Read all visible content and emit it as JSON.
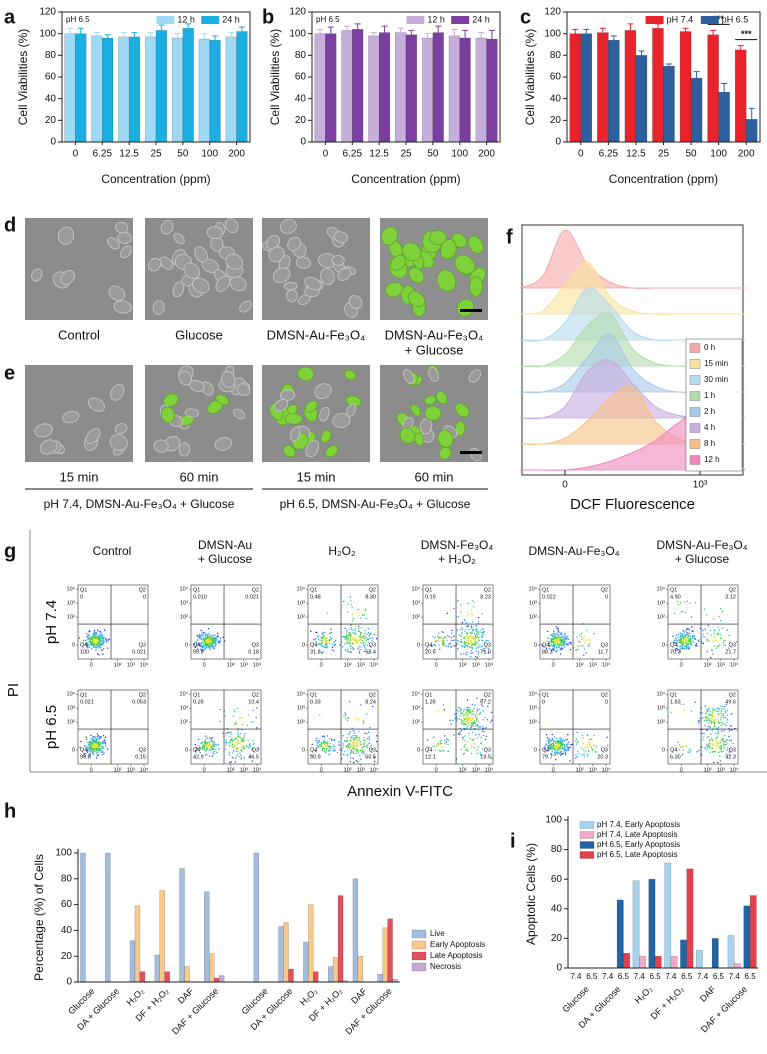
{
  "chart_data": [
    {
      "type": "bar",
      "panel": "a",
      "annotation": "pH 6.5",
      "xlabel": "Concentration (ppm)",
      "ylabel": "Cell Viabilities (%)",
      "categories": [
        "0",
        "6.25",
        "12.5",
        "25",
        "50",
        "100",
        "200"
      ],
      "series": [
        {
          "name": "12 h",
          "color": "#9fd9f3",
          "values": [
            100,
            98,
            97,
            97,
            96,
            95,
            97
          ],
          "errors": [
            5,
            3,
            4,
            4,
            4,
            5,
            4
          ]
        },
        {
          "name": "24 h",
          "color": "#1aafe0",
          "values": [
            100,
            96,
            97,
            103,
            105,
            94,
            102
          ],
          "errors": [
            5,
            3,
            4,
            5,
            4,
            4,
            4
          ]
        }
      ],
      "ylim": [
        0,
        120
      ],
      "yticks": [
        0,
        20,
        40,
        60,
        80,
        100,
        120
      ],
      "legend": "top-right"
    },
    {
      "type": "bar",
      "panel": "b",
      "annotation": "pH 6.5",
      "xlabel": "Concentration (ppm)",
      "ylabel": "Cell Viabilities (%)",
      "categories": [
        "0",
        "6.25",
        "12.5",
        "25",
        "50",
        "100",
        "200"
      ],
      "series": [
        {
          "name": "12 h",
          "color": "#c6aedb",
          "values": [
            100,
            103,
            98,
            101,
            96,
            98,
            96
          ],
          "errors": [
            4,
            4,
            3,
            4,
            4,
            6,
            5
          ]
        },
        {
          "name": "24 h",
          "color": "#7a3f9f",
          "values": [
            100,
            104,
            101,
            99,
            101,
            96,
            95
          ],
          "errors": [
            6,
            5,
            6,
            4,
            6,
            7,
            8
          ]
        }
      ],
      "ylim": [
        0,
        120
      ],
      "yticks": [
        0,
        20,
        40,
        60,
        80,
        100,
        120
      ],
      "legend": "top-right"
    },
    {
      "type": "bar",
      "panel": "c",
      "xlabel": "Concentration (ppm)",
      "ylabel": "Cell Viabilities (%)",
      "categories": [
        "0",
        "6.25",
        "12.5",
        "25",
        "50",
        "100",
        "200"
      ],
      "series": [
        {
          "name": "pH 7.4",
          "color": "#e8232b",
          "values": [
            100,
            101,
            103,
            105,
            102,
            99,
            85
          ],
          "errors": [
            4,
            4,
            6,
            4,
            3,
            4,
            4
          ]
        },
        {
          "name": "pH 6.5",
          "color": "#2e5f9f",
          "values": [
            100,
            94,
            80,
            70,
            59,
            46,
            21
          ],
          "errors": [
            4,
            4,
            4,
            2,
            6,
            8,
            10
          ]
        }
      ],
      "annotations": [
        "***",
        "***"
      ],
      "ylim": [
        0,
        120
      ],
      "yticks": [
        0,
        20,
        40,
        60,
        80,
        100,
        120
      ],
      "legend": "top-right"
    },
    {
      "type": "ridgeline",
      "panel": "f",
      "xlabel": "DCF Fluorescence",
      "x": [
        -1,
        -0.5,
        0,
        0.5,
        1,
        1.5,
        2,
        2.5,
        3,
        3.5,
        4
      ],
      "xlim": [
        -1,
        4
      ],
      "xticks": [
        {
          "value": 0,
          "label": "0"
        },
        {
          "value": 3,
          "label": "10³"
        }
      ],
      "series": [
        {
          "name": "0 h",
          "color": "#f3a9aa",
          "values": [
            0,
            0.2,
            1,
            0.4,
            0.1,
            0,
            0,
            0,
            0,
            0,
            0
          ]
        },
        {
          "name": "15 min",
          "color": "#f8e29a",
          "values": [
            0,
            0.05,
            0.5,
            0.9,
            0.3,
            0.05,
            0,
            0,
            0,
            0,
            0
          ]
        },
        {
          "name": "30 min",
          "color": "#b5dbef",
          "values": [
            0,
            0,
            0.3,
            0.9,
            0.6,
            0.15,
            0,
            0,
            0,
            0,
            0
          ]
        },
        {
          "name": "1 h",
          "color": "#b3dcab",
          "values": [
            0,
            0,
            0.2,
            0.7,
            0.9,
            0.3,
            0.05,
            0,
            0,
            0,
            0
          ]
        },
        {
          "name": "2 h",
          "color": "#a6c9e8",
          "values": [
            0,
            0,
            0.15,
            0.6,
            1,
            0.4,
            0.1,
            0,
            0,
            0,
            0
          ]
        },
        {
          "name": "4 h",
          "color": "#c8acdf",
          "values": [
            0,
            0,
            0.2,
            0.8,
            1,
            0.6,
            0.2,
            0.05,
            0,
            0,
            0
          ]
        },
        {
          "name": "8 h",
          "color": "#f7c085",
          "values": [
            0,
            0,
            0.1,
            0.4,
            0.8,
            1,
            0.4,
            0.1,
            0,
            0,
            0
          ]
        },
        {
          "name": "12 h",
          "color": "#ee86bd",
          "values": [
            0,
            0,
            0,
            0.05,
            0.15,
            0.3,
            0.5,
            0.8,
            1,
            0.4,
            0
          ]
        }
      ]
    },
    {
      "type": "bar",
      "panel": "h",
      "ylabel": "Percentage (%) of Cells",
      "categories": [
        "Glucose",
        "DA + Glucose",
        "H₂O₂",
        "DF + H₂O₂",
        "DAF",
        "DAF + Glucose",
        null,
        "Glucose",
        "DA + Glucose",
        "H₂O₂",
        "DF + H₂O₂",
        "DAF",
        "DAF + Glucose"
      ],
      "series": [
        {
          "name": "Live",
          "color": "#a3bde0",
          "values": [
            100,
            100,
            32,
            21,
            88,
            70,
            null,
            100,
            43,
            31,
            12,
            80,
            6
          ]
        },
        {
          "name": "Early Apoptosis",
          "color": "#f8c88d",
          "values": [
            0,
            0,
            59,
            71,
            12,
            22,
            null,
            0,
            46,
            60,
            19,
            20,
            42
          ]
        },
        {
          "name": "Late Apoptosis",
          "color": "#e2505b",
          "values": [
            0,
            0,
            8,
            8,
            0,
            3,
            null,
            0,
            10,
            8,
            67,
            0,
            49
          ]
        },
        {
          "name": "Necrosis",
          "color": "#c3a9d6",
          "values": [
            0,
            0,
            0.5,
            0.2,
            0,
            5,
            null,
            0,
            0.3,
            0.3,
            1,
            0,
            2
          ]
        }
      ],
      "ylim": [
        0,
        100
      ],
      "yticks": [
        0,
        20,
        40,
        60,
        80,
        100
      ],
      "legend": "right"
    },
    {
      "type": "bar",
      "panel": "i",
      "ylabel": "Apoptotic Cells (%)",
      "categories": [
        "Glucose",
        "DA + Glucose",
        "H₂O₂",
        "DF + H₂O₂",
        "DAF",
        "DAF + Glucose"
      ],
      "groups": [
        {
          "subcategory": "7.4",
          "series": [
            {
              "name": "pH 7.4, Early Apoptosis",
              "color": "#a8d3ee",
              "values": [
                0,
                0,
                59,
                71,
                12,
                22
              ]
            },
            {
              "name": "pH 7.4, Late Apoptosis",
              "color": "#f1a9c8",
              "values": [
                0,
                0,
                8,
                8,
                0,
                3
              ]
            }
          ]
        },
        {
          "subcategory": "6.5",
          "series": [
            {
              "name": "pH 6.5, Early Apoptosis",
              "color": "#1f64a3",
              "values": [
                0,
                46,
                60,
                19,
                20,
                42
              ]
            },
            {
              "name": "pH 6.5, Late Apoptosis",
              "color": "#e0404f",
              "values": [
                0,
                10,
                8,
                67,
                0,
                49
              ]
            }
          ]
        }
      ],
      "ylim": [
        0,
        100
      ],
      "yticks": [
        0,
        20,
        40,
        60,
        80,
        100
      ],
      "legend": "top-left"
    }
  ],
  "images": {
    "d": {
      "panel": "d",
      "captions": [
        [
          "Control"
        ],
        [
          "Glucose"
        ],
        [
          "DMSN-Au-Fe₃O₄"
        ],
        [
          "DMSN-Au-Fe₃O₄",
          "+ Glucose"
        ]
      ]
    },
    "e": {
      "panel": "e",
      "captions": [
        [
          "15 min"
        ],
        [
          "60 min"
        ],
        [
          "15 min"
        ],
        [
          "60 min"
        ]
      ],
      "groups": [
        "pH 7.4, DMSN-Au-Fe₃O₄ + Glucose",
        "pH 6.5, DMSN-Au-Fe₃O₄ + Glucose"
      ]
    }
  },
  "flow": {
    "panel": "g",
    "xlabel": "Annexin V-FITC",
    "ylabel": "PI",
    "xlim": [
      -1,
      4.3
    ],
    "ylim": [
      -1,
      4.3
    ],
    "xticks": [
      {
        "value": 0,
        "label": "0"
      },
      {
        "value": 2,
        "label": "10²"
      },
      {
        "value": 3,
        "label": "10³"
      },
      {
        "value": 4,
        "label": "10⁴"
      }
    ],
    "yticks": [
      {
        "value": 0,
        "label": "0"
      },
      {
        "value": 2,
        "label": "10²"
      },
      {
        "value": 3,
        "label": "10³"
      },
      {
        "value": 4,
        "label": "10⁴"
      }
    ],
    "quadrant_names": [
      "Q1",
      "Q2",
      "Q3",
      "Q4"
    ],
    "columns": [
      [
        "Control"
      ],
      [
        "DMSN-Au",
        "+ Glucose"
      ],
      [
        "H₂O₂"
      ],
      [
        "DMSN-Fe₃O₄",
        "+ H₂O₂"
      ],
      [
        "DMSN-Au-Fe₃O₄"
      ],
      [
        "DMSN-Au-Fe₃O₄",
        "+ Glucose"
      ]
    ],
    "rows": [
      {
        "label": "pH 7.4",
        "plots": [
          {
            "quadrants": [
              0,
              0,
              0.021,
              100
            ],
            "quadrant_labels": [
              "0",
              "0",
              "0.021",
              "100"
            ]
          },
          {
            "quadrants": [
              0.01,
              0.021,
              0.18,
              99.8
            ],
            "quadrant_labels": [
              "0.010",
              "0.021",
              "0.18",
              "99.8"
            ]
          },
          {
            "quadrants": [
              0.48,
              8.3,
              59.4,
              31.8
            ],
            "quadrant_labels": [
              "0.48",
              "8.30",
              "59.4",
              "31.8"
            ]
          },
          {
            "quadrants": [
              0.19,
              8.23,
              71,
              20.6
            ],
            "quadrant_labels": [
              "0.19",
              "8.23",
              "71.0",
              "20.6"
            ]
          },
          {
            "quadrants": [
              0.022,
              0,
              11.7,
              88.3
            ],
            "quadrant_labels": [
              "0.022",
              "0",
              "11.7",
              "88.3"
            ]
          },
          {
            "quadrants": [
              4.9,
              3.12,
              21.7,
              70.3
            ],
            "quadrant_labels": [
              "4.90",
              "3.12",
              "21.7",
              "70.3"
            ]
          }
        ]
      },
      {
        "label": "pH 6.5",
        "plots": [
          {
            "quadrants": [
              0.021,
              0.053,
              0.15,
              99.8
            ],
            "quadrant_labels": [
              "0.021",
              "0.053",
              "0.15",
              "99.8"
            ]
          },
          {
            "quadrants": [
              0.26,
              10.4,
              46.5,
              42.9
            ],
            "quadrant_labels": [
              "0.26",
              "10.4",
              "46.5",
              "42.9"
            ]
          },
          {
            "quadrants": [
              0.33,
              8.24,
              60.5,
              30.9
            ],
            "quadrant_labels": [
              "0.33",
              "8.24",
              "60.5",
              "30.9"
            ]
          },
          {
            "quadrants": [
              1.26,
              67.2,
              19.5,
              12.1
            ],
            "quadrant_labels": [
              "1.26",
              "67.2",
              "19.5",
              "12.1"
            ]
          },
          {
            "quadrants": [
              0,
              0,
              20.3,
              79.7
            ],
            "quadrant_labels": [
              "0",
              "0",
              "20.3",
              "79.7"
            ]
          },
          {
            "quadrants": [
              1.83,
              49.6,
              42.3,
              6.3
            ],
            "quadrant_labels": [
              "1.83",
              "49.6",
              "42.3",
              "6.30"
            ]
          }
        ]
      }
    ]
  }
}
